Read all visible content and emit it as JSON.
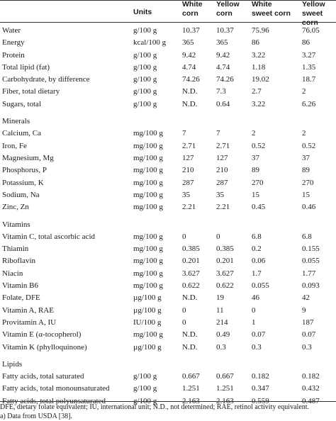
{
  "header": {
    "units": "Units",
    "white_corn": [
      "White",
      "corn"
    ],
    "yellow_corn": [
      "Yellow",
      "corn"
    ],
    "white_sweet_corn": [
      "White",
      "sweet corn"
    ],
    "yellow_sweet_corn": [
      "Yellow",
      "sweet corn"
    ]
  },
  "rows": [
    {
      "type": "data",
      "name": "Water",
      "units": "g/100 g",
      "values": [
        "10.37",
        "10.37",
        "75.96",
        "76.05"
      ]
    },
    {
      "type": "data",
      "name": "Energy",
      "units": "kcal/100 g",
      "values": [
        "365",
        "365",
        "86",
        "86"
      ]
    },
    {
      "type": "data",
      "name": "Protein",
      "units": "g/100 g",
      "values": [
        "9.42",
        "9.42",
        "3.22",
        "3.27"
      ]
    },
    {
      "type": "data",
      "name": "Total lipid (fat)",
      "units": "g/100 g",
      "values": [
        "4.74",
        "4.74",
        "1.18",
        "1.35"
      ]
    },
    {
      "type": "data",
      "name": "Carbohydrate, by difference",
      "units": "g/100 g",
      "values": [
        "74.26",
        "74.26",
        "19.02",
        "18.7"
      ]
    },
    {
      "type": "data",
      "name": "Fiber, total dietary",
      "units": "g/100 g",
      "values": [
        "N.D.",
        "7.3",
        "2.7",
        "2"
      ]
    },
    {
      "type": "data",
      "name": "Sugars, total",
      "units": "g/100 g",
      "values": [
        "N.D.",
        "0.64",
        "3.22",
        "6.26"
      ]
    },
    {
      "type": "section",
      "name": "Minerals"
    },
    {
      "type": "data",
      "name": "Calcium, Ca",
      "units": "mg/100 g",
      "values": [
        "7",
        "7",
        "2",
        "2"
      ]
    },
    {
      "type": "data",
      "name": "Iron, Fe",
      "units": "mg/100 g",
      "values": [
        "2.71",
        "2.71",
        "0.52",
        "0.52"
      ]
    },
    {
      "type": "data",
      "name": "Magnesium, Mg",
      "units": "mg/100 g",
      "values": [
        "127",
        "127",
        "37",
        "37"
      ]
    },
    {
      "type": "data",
      "name": "Phosphorus, P",
      "units": "mg/100 g",
      "values": [
        "210",
        "210",
        "89",
        "89"
      ]
    },
    {
      "type": "data",
      "name": "Potassium, K",
      "units": "mg/100 g",
      "values": [
        "287",
        "287",
        "270",
        "270"
      ]
    },
    {
      "type": "data",
      "name": "Sodium, Na",
      "units": "mg/100 g",
      "values": [
        "35",
        "35",
        "15",
        "15"
      ]
    },
    {
      "type": "data",
      "name": "Zinc, Zn",
      "units": "mg/100 g",
      "values": [
        "2.21",
        "2.21",
        "0.45",
        "0.46"
      ]
    },
    {
      "type": "section",
      "name": "Vitamins"
    },
    {
      "type": "data",
      "name": "Vitamin C, total ascorbic acid",
      "units": "mg/100 g",
      "values": [
        "0",
        "0",
        "6.8",
        "6.8"
      ]
    },
    {
      "type": "data",
      "name": "Thiamin",
      "units": "mg/100 g",
      "values": [
        "0.385",
        "0.385",
        "0.2",
        "0.155"
      ]
    },
    {
      "type": "data",
      "name": "Riboflavin",
      "units": "mg/100 g",
      "values": [
        "0.201",
        "0.201",
        "0.06",
        "0.055"
      ]
    },
    {
      "type": "data",
      "name": "Niacin",
      "units": "mg/100 g",
      "values": [
        "3.627",
        "3.627",
        "1.7",
        "1.77"
      ]
    },
    {
      "type": "data",
      "name": "Vitamin B6",
      "units": "mg/100 g",
      "values": [
        "0.622",
        "0.622",
        "0.055",
        "0.093"
      ]
    },
    {
      "type": "data",
      "name": "Folate, DFE",
      "units": "µg/100 g",
      "values": [
        "N.D.",
        "19",
        "46",
        "42"
      ]
    },
    {
      "type": "data",
      "name": "Vitamin A, RAE",
      "units": "µg/100 g",
      "values": [
        "0",
        "11",
        "0",
        "9"
      ]
    },
    {
      "type": "data",
      "name": "Provitamin A, IU",
      "units": "IU/100 g",
      "values": [
        "0",
        "214",
        "1",
        "187"
      ]
    },
    {
      "type": "data",
      "name": "Vitamin E (α-tocopherol)",
      "units": "mg/100 g",
      "values": [
        "N.D.",
        "0.49",
        "0.07",
        "0.07"
      ]
    },
    {
      "type": "data",
      "name": "Vitamin K (phylloquinone)",
      "units": "µg/100 g",
      "values": [
        "N.D.",
        "0.3",
        "0.3",
        "0.3"
      ]
    },
    {
      "type": "section",
      "name": "Lipids"
    },
    {
      "type": "data",
      "name": "Fatty acids, total saturated",
      "units": "g/100 g",
      "values": [
        "0.667",
        "0.667",
        "0.182",
        "0.182"
      ]
    },
    {
      "type": "data",
      "name": "Fatty acids, total monounsaturated",
      "units": "g/100 g",
      "values": [
        "1.251",
        "1.251",
        "0.347",
        "0.432"
      ]
    },
    {
      "type": "data",
      "name": "Fatty acids, total polyunsaturated",
      "units": "g/100 g",
      "values": [
        "2.163",
        "2.163",
        "0.559",
        "0.487"
      ]
    }
  ],
  "footnotes": [
    "DFE, dietary folate equivalent; IU, international unit; N.D., not determined; RAE, retinol activity equivalent.",
    "a)   Data from USDA [38]."
  ]
}
